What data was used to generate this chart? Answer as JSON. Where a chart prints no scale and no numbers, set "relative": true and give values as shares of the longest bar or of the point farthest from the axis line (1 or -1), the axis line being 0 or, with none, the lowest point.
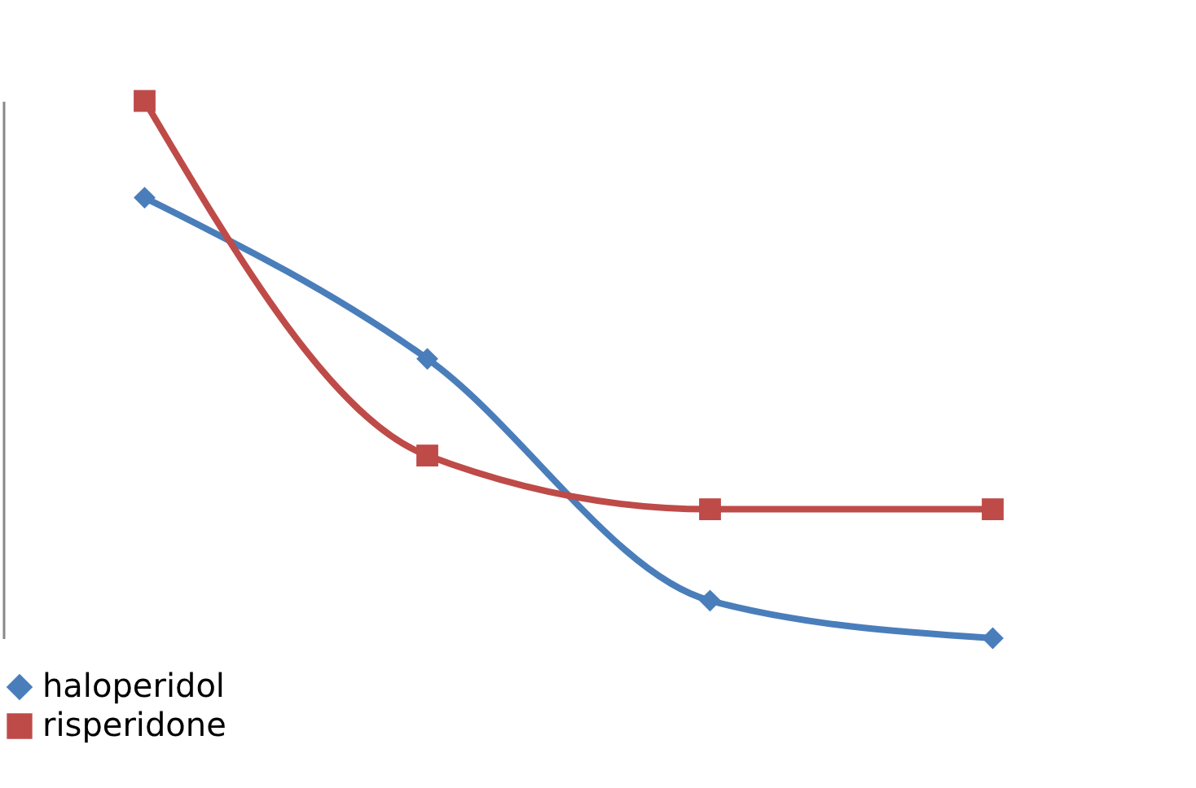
{
  "chart_data": {
    "type": "line",
    "relative": true,
    "categories": [
      null,
      null,
      null,
      null
    ],
    "series": [
      {
        "name": "haloperidol",
        "color": "#4a7ebb",
        "marker": "diamond",
        "values": [
          0.82,
          0.52,
          0.07,
          0
        ]
      },
      {
        "name": "risperidone",
        "color": "#be4b48",
        "marker": "square",
        "values": [
          1,
          0.34,
          0.24,
          0.24
        ]
      }
    ],
    "legend": "bottom",
    "line_style": "solid"
  }
}
